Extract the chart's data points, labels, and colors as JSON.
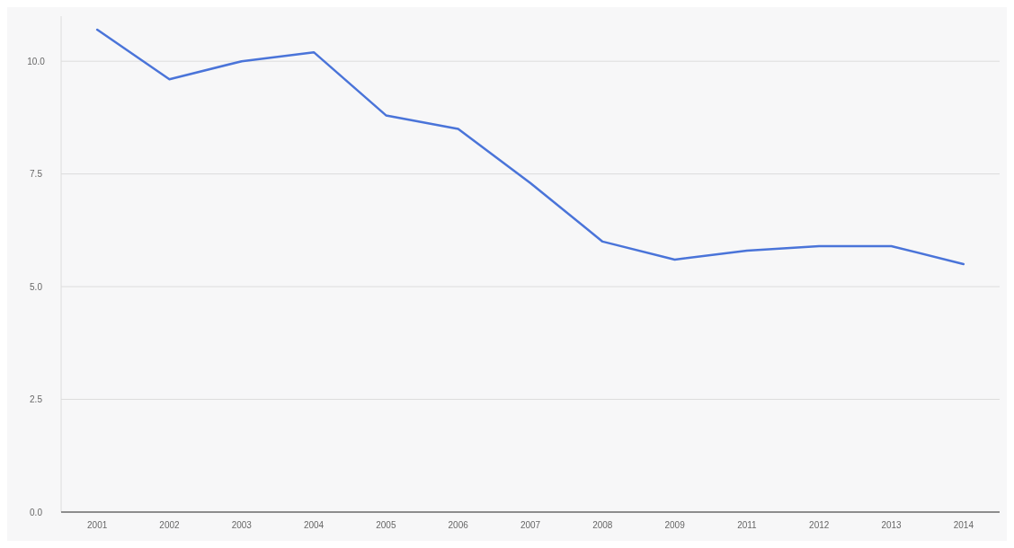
{
  "chart_data": {
    "type": "line",
    "categories": [
      "2001",
      "2002",
      "2003",
      "2004",
      "2005",
      "2006",
      "2007",
      "2008",
      "2009",
      "2011",
      "2012",
      "2013",
      "2014"
    ],
    "series": [
      {
        "color": "#4a74d9",
        "values": [
          10.7,
          9.6,
          10.0,
          10.2,
          8.8,
          8.5,
          7.3,
          6.0,
          5.6,
          5.8,
          5.9,
          5.9,
          5.5
        ]
      }
    ],
    "ylim": [
      0,
      11
    ],
    "yticks": [
      {
        "value": 0,
        "label": "0.0"
      },
      {
        "value": 2.5,
        "label": "2.5"
      },
      {
        "value": 5,
        "label": "5.0"
      },
      {
        "value": 7.5,
        "label": "7.5"
      },
      {
        "value": 10,
        "label": "10.0"
      }
    ],
    "grid": "y",
    "marker": "none",
    "line_style": "solid"
  }
}
